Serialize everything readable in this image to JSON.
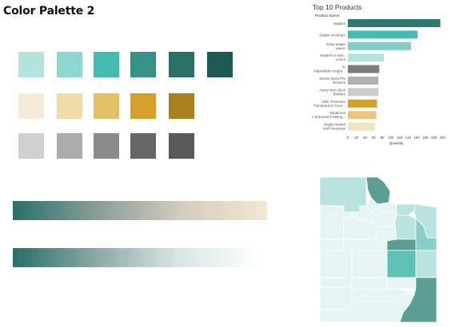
{
  "page": {
    "title": "Color Palette 2"
  },
  "palette": {
    "rows": [
      [
        "#b2e3df",
        "#8fd5d0",
        "#45bab0",
        "#359288",
        "#2b6f69",
        "#1f5a52"
      ],
      [
        "#f5ebd6",
        "#f0dcaa",
        "#e1c06a",
        "#d4a02a",
        "#a8801f"
      ],
      [
        "#cfcfcf",
        "#ababab",
        "#8b8b8b",
        "#666666",
        "#595959"
      ]
    ],
    "gradients": [
      {
        "stops": [
          "#2b6f69",
          "#8a9e98",
          "#d3cdbf",
          "#f2e7d1"
        ]
      },
      {
        "stops": [
          "#2b6f69",
          "#8aa9a4",
          "#d9e6e3",
          "#ffffff"
        ]
      }
    ]
  },
  "chart_data": {
    "type": "bar",
    "title": "Top 10 Products",
    "category_header": "Product Name",
    "categories": [
      "Staples",
      "Staple envelope",
      "Easy-staple paper",
      "Staples in misc. colors",
      "KI Adjustable-Height...",
      "Storex Dura Pro Binders",
      "Avery Non-Stick Binders",
      "GBC Premium Transparent Cove...",
      "Situations Contoured Folding...",
      "Staple-based wall hangings"
    ],
    "values": [
      215,
      162,
      147,
      84,
      73,
      71,
      71,
      68,
      66,
      63
    ],
    "colors": [
      "#2b7a70",
      "#45bab0",
      "#7fcfc8",
      "#b5e4df",
      "#7d7d7d",
      "#b0b0b0",
      "#cccccc",
      "#d4a02a",
      "#e9c67a",
      "#f2e2bd"
    ],
    "x_ticks": [
      "0",
      "20",
      "40",
      "60",
      "80",
      "100",
      "120",
      "140",
      "160",
      "180",
      "200",
      "220"
    ],
    "xlim": [
      0,
      225
    ],
    "xlabel": "Quantity",
    "grid": false,
    "legend": "none"
  },
  "map": {
    "colors": {
      "pale": "#e6f4f2",
      "light": "#b8e3df",
      "mid": "#86d0c8",
      "strong": "#5ec1b6",
      "dark": "#5a9e94"
    }
  }
}
